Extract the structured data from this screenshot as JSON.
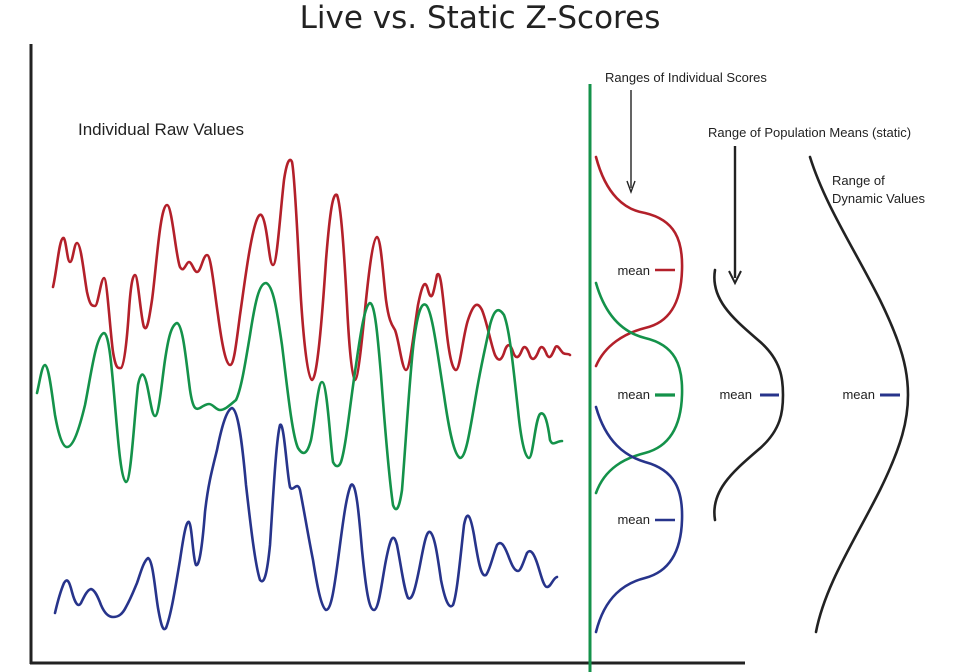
{
  "title": "Live vs. Static Z-Scores",
  "raw_values_label": "Individual Raw Values",
  "individual_ranges_label": "Ranges of Individual Scores",
  "population_means_label": "Range of Population Means (static)",
  "dynamic_label_line1": "Range of",
  "dynamic_label_line2": "Dynamic Values",
  "mean_label": "mean",
  "colors": {
    "red": "#b3202a",
    "green": "#14924a",
    "blue": "#27348b",
    "black": "#222222"
  }
}
